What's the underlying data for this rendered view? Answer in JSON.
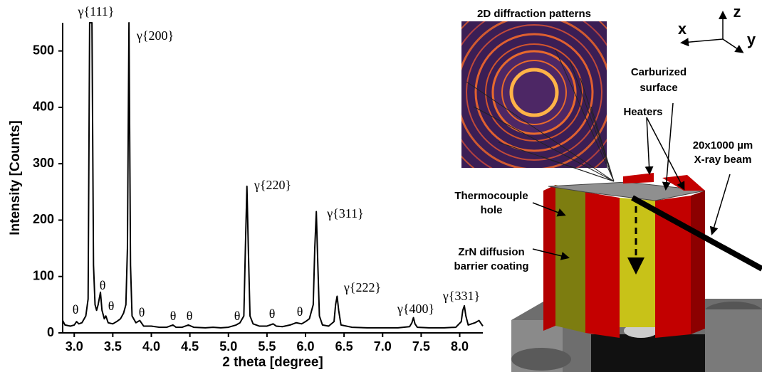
{
  "chart_data": {
    "type": "line",
    "xlabel": "2 theta [degree]",
    "ylabel": "Intensity [Counts]",
    "x": [
      2.85,
      2.88,
      2.95,
      3.0,
      3.03,
      3.06,
      3.1,
      3.15,
      3.18,
      3.2,
      3.23,
      3.25,
      3.27,
      3.29,
      3.31,
      3.34,
      3.36,
      3.39,
      3.41,
      3.44,
      3.5,
      3.55,
      3.6,
      3.64,
      3.67,
      3.69,
      3.71,
      3.73,
      3.75,
      3.8,
      3.85,
      3.9,
      4.0,
      4.1,
      4.2,
      4.28,
      4.32,
      4.4,
      4.48,
      4.55,
      4.7,
      4.8,
      4.9,
      5.0,
      5.1,
      5.15,
      5.2,
      5.22,
      5.24,
      5.26,
      5.28,
      5.32,
      5.4,
      5.5,
      5.58,
      5.62,
      5.7,
      5.8,
      5.88,
      5.95,
      6.0,
      6.05,
      6.1,
      6.12,
      6.14,
      6.16,
      6.18,
      6.22,
      6.3,
      6.37,
      6.39,
      6.41,
      6.43,
      6.46,
      6.6,
      6.8,
      7.0,
      7.2,
      7.35,
      7.38,
      7.4,
      7.42,
      7.45,
      7.6,
      7.8,
      7.95,
      8.02,
      8.04,
      8.06,
      8.08,
      8.11,
      8.2,
      8.25,
      8.3
    ],
    "values": [
      22,
      14,
      12,
      14,
      20,
      16,
      18,
      30,
      60,
      550,
      550,
      120,
      50,
      40,
      50,
      72,
      40,
      25,
      30,
      18,
      16,
      20,
      25,
      35,
      50,
      150,
      550,
      120,
      30,
      18,
      22,
      12,
      12,
      10,
      10,
      14,
      10,
      10,
      14,
      10,
      9,
      10,
      9,
      10,
      14,
      18,
      30,
      150,
      260,
      140,
      30,
      16,
      12,
      12,
      16,
      12,
      11,
      14,
      18,
      16,
      20,
      25,
      50,
      150,
      215,
      120,
      30,
      14,
      12,
      20,
      50,
      65,
      40,
      14,
      10,
      9,
      9,
      9,
      11,
      18,
      27,
      16,
      10,
      9,
      9,
      10,
      20,
      40,
      48,
      30,
      14,
      18,
      22,
      12
    ],
    "color": "#000000",
    "xlim": [
      2.85,
      8.3
    ],
    "ylim": [
      0,
      550
    ],
    "xticks": [
      {
        "value": 3,
        "label": "3.0"
      },
      3.5,
      {
        "value": 4,
        "label": "4.0"
      },
      4.5,
      {
        "value": 5,
        "label": "5.0"
      },
      5.5,
      {
        "value": 6,
        "label": "6.0"
      },
      6.5,
      {
        "value": 7,
        "label": "7.0"
      },
      7.5,
      {
        "value": 8,
        "label": "8.0"
      }
    ],
    "yticks": [
      0,
      100,
      200,
      300,
      400,
      500
    ],
    "annotations": [
      "γ{111}",
      "γ{200}",
      "γ{220}",
      "γ{311}",
      "γ{222}",
      "γ{400}",
      "γ{331}",
      "θ",
      "θ",
      "θ",
      "θ",
      "θ",
      "θ",
      "θ",
      "θ",
      "θ"
    ]
  },
  "diagram": {
    "title": "2D diffraction patterns",
    "carburized": [
      "Carburized",
      "surface"
    ],
    "heaters": "Heaters",
    "beam": [
      "20x1000 µm",
      "X-ray beam"
    ],
    "thermocouple": [
      "Thermocouple",
      "hole"
    ],
    "coating": [
      "ZrN diffusion",
      "barrier coating"
    ],
    "axes": [
      "x",
      "y",
      "z"
    ]
  }
}
